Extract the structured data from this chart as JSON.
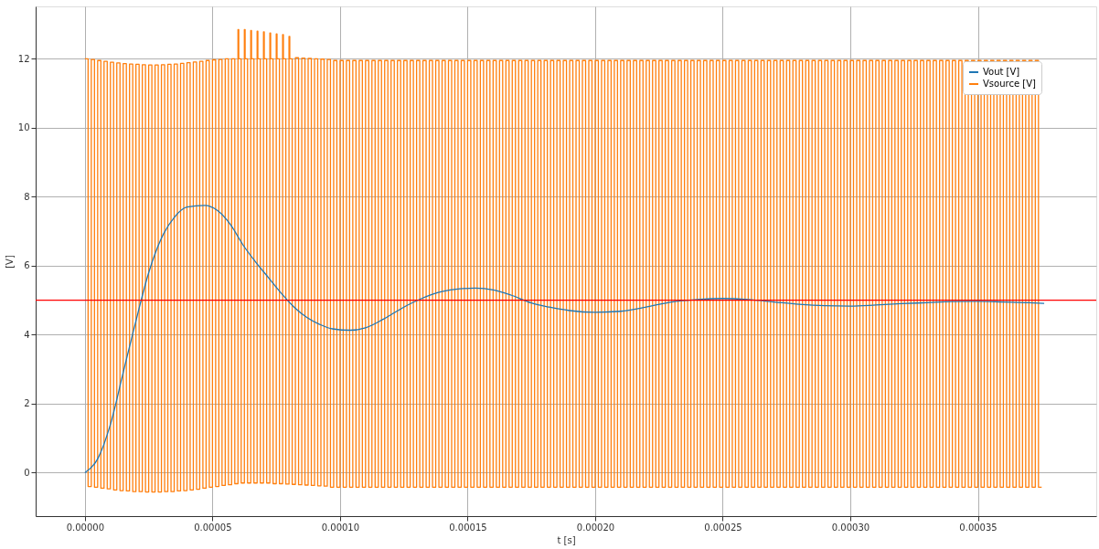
{
  "chart_data": {
    "type": "line",
    "xlabel": "t [s]",
    "ylabel": "[V]",
    "xlim": [
      -1.93e-05,
      0.0003964
    ],
    "ylim": [
      -1.26,
      13.52
    ],
    "xticks": [
      {
        "value": 0,
        "label": "0.00000"
      },
      {
        "value": 5e-05,
        "label": "0.00005"
      },
      {
        "value": 0.0001,
        "label": "0.00010"
      },
      {
        "value": 0.00015,
        "label": "0.00015"
      },
      {
        "value": 0.0002,
        "label": "0.00020"
      },
      {
        "value": 0.00025,
        "label": "0.00025"
      },
      {
        "value": 0.0003,
        "label": "0.00030"
      },
      {
        "value": 0.00035,
        "label": "0.00035"
      }
    ],
    "yticks": [
      0,
      2,
      4,
      6,
      8,
      10,
      12
    ],
    "grid": true,
    "legend": "top right",
    "line_style": "solid",
    "marker": "none",
    "ref_lines": [
      {
        "axis": "y",
        "value": 5,
        "color": "#ff0000"
      }
    ],
    "series": [
      {
        "name": "Vout [V]",
        "color": "#1f77b4",
        "x": [
          0,
          5e-06,
          1e-05,
          1.5e-05,
          2e-05,
          2.5e-05,
          3e-05,
          3.5e-05,
          4e-05,
          4.7e-05,
          5.2e-05,
          5.7e-05,
          6.2e-05,
          6.7e-05,
          7.2e-05,
          7.7e-05,
          8.2e-05,
          8.7e-05,
          9.2e-05,
          9.7e-05,
          0.000104,
          0.00011,
          0.000117,
          0.000125,
          0.000132,
          0.00014,
          0.000147,
          0.000153,
          0.00016,
          0.000167,
          0.000175,
          0.000182,
          0.00019,
          0.0002,
          0.00021,
          0.00022,
          0.00023,
          0.00024,
          0.00025,
          0.00026,
          0.00027,
          0.00028,
          0.00029,
          0.0003,
          0.00031,
          0.00032,
          0.00033,
          0.00034,
          0.00035,
          0.00036,
          0.00037,
          0.000376
        ],
        "values": [
          0,
          0.4,
          1.4,
          2.9,
          4.4,
          5.8,
          6.8,
          7.4,
          7.7,
          7.75,
          7.6,
          7.2,
          6.6,
          6.1,
          5.65,
          5.2,
          4.8,
          4.5,
          4.3,
          4.17,
          4.13,
          4.2,
          4.45,
          4.8,
          5.05,
          5.25,
          5.33,
          5.35,
          5.3,
          5.15,
          4.92,
          4.8,
          4.7,
          4.65,
          4.68,
          4.8,
          4.95,
          5.02,
          5.05,
          5.02,
          4.95,
          4.88,
          4.84,
          4.83,
          4.86,
          4.9,
          4.93,
          4.96,
          4.97,
          4.95,
          4.93,
          4.91
        ]
      },
      {
        "name": "Vsource [V]",
        "color": "#ff7f0e",
        "type": "step",
        "x": [
          0,
          1.25e-06,
          2.5e-06,
          3.75e-06,
          5e-06,
          6.25e-06,
          7.5e-06,
          8.75e-06,
          1e-05,
          1.125e-05,
          1.25e-05,
          1.375e-05,
          1.5e-05,
          1.625e-05,
          1.75e-05,
          1.875e-05,
          2e-05,
          2.125e-05,
          2.25e-05,
          2.375e-05,
          2.5e-05,
          2.625e-05,
          2.75e-05,
          2.875e-05,
          3e-05,
          3.125e-05,
          3.25e-05,
          3.375e-05,
          3.5e-05,
          3.625e-05,
          3.75e-05,
          3.875e-05,
          4e-05,
          4.125e-05,
          4.25e-05,
          4.375e-05,
          4.5e-05,
          4.625e-05,
          4.75e-05,
          4.875e-05,
          5e-05,
          5.125e-05,
          5.25e-05,
          5.375e-05,
          5.5e-05,
          5.625e-05,
          5.75e-05,
          5.875e-05,
          6e-05,
          6.03e-05,
          6.125e-05,
          6.25e-05,
          6.28e-05,
          6.375e-05,
          6.5e-05,
          6.53e-05,
          6.625e-05,
          6.75e-05,
          6.78e-05,
          6.875e-05,
          7e-05,
          7.03e-05,
          7.125e-05,
          7.25e-05,
          7.28e-05,
          7.375e-05,
          7.5e-05,
          7.53e-05,
          7.625e-05,
          7.75e-05,
          7.78e-05,
          7.875e-05,
          8e-05,
          8.03e-05,
          8.125e-05,
          8.25e-05,
          8.375e-05,
          8.5e-05,
          8.625e-05,
          8.75e-05,
          8.875e-05,
          9e-05,
          9.125e-05,
          9.25e-05,
          9.375e-05,
          9.5e-05,
          9.625e-05,
          9.75e-05,
          9.875e-05,
          0.0001,
          0.00010125,
          0.0001025,
          0.00010375,
          0.000105,
          0.00010625,
          0.0001075,
          0.00010875,
          0.00011,
          0.00011125,
          0.0001125,
          0.00011375,
          0.000115,
          0.00011625,
          0.0001175,
          0.00011875,
          0.00012,
          0.00012125,
          0.0001225,
          0.00012375,
          0.000125,
          0.00012625,
          0.0001275,
          0.00012875,
          0.00013,
          0.00013125,
          0.0001325,
          0.00013375,
          0.000135,
          0.00013625,
          0.0001375,
          0.00013875,
          0.00014,
          0.00014125,
          0.0001425,
          0.00014375,
          0.000145,
          0.00014625,
          0.0001475,
          0.00014875,
          0.00015,
          0.00015125,
          0.0001525,
          0.00015375,
          0.000155,
          0.00015625,
          0.0001575,
          0.00015875,
          0.00016,
          0.00016125,
          0.0001625,
          0.00016375,
          0.000165,
          0.00016625,
          0.0001675,
          0.00016875,
          0.00017,
          0.00017125,
          0.0001725,
          0.00017375,
          0.000175,
          0.00017625,
          0.0001775,
          0.00017875,
          0.00018,
          0.00018125,
          0.0001825,
          0.00018375,
          0.000185,
          0.00018625,
          0.0001875,
          0.00018875,
          0.00019,
          0.00019125,
          0.0001925,
          0.00019375,
          0.000195,
          0.00019625,
          0.0001975,
          0.00019875,
          0.0002,
          0.00020125,
          0.0002025,
          0.00020375,
          0.000205,
          0.00020625,
          0.0002075,
          0.00020875,
          0.00021,
          0.00021125,
          0.0002125,
          0.00021375,
          0.000215,
          0.00021625,
          0.0002175,
          0.00021875,
          0.00022,
          0.00022125,
          0.0002225,
          0.00022375,
          0.000225,
          0.00022625,
          0.0002275,
          0.00022875,
          0.00023,
          0.00023125,
          0.0002325,
          0.00023375,
          0.000235,
          0.00023625,
          0.0002375,
          0.00023875,
          0.00024,
          0.00024125,
          0.0002425,
          0.00024375,
          0.000245,
          0.00024625,
          0.0002475,
          0.00024875,
          0.00025,
          0.00025125,
          0.0002525,
          0.00025375,
          0.000255,
          0.00025625,
          0.0002575,
          0.00025875,
          0.00026,
          0.00026125,
          0.0002625,
          0.00026375,
          0.000265,
          0.00026625,
          0.0002675,
          0.00026875,
          0.00027,
          0.00027125,
          0.0002725,
          0.00027375,
          0.000275,
          0.00027625,
          0.0002775,
          0.00027875,
          0.00028,
          0.00028125,
          0.0002825,
          0.00028375,
          0.000285,
          0.00028625,
          0.0002875,
          0.00028875,
          0.00029,
          0.00029125,
          0.0002925,
          0.00029375,
          0.000295,
          0.00029625,
          0.0002975,
          0.00029875,
          0.0003,
          0.00030125,
          0.0003025,
          0.00030375,
          0.000305,
          0.00030625,
          0.0003075,
          0.00030875,
          0.00031,
          0.00031125,
          0.0003125,
          0.00031375,
          0.000315,
          0.00031625,
          0.0003175,
          0.00031875,
          0.00032,
          0.00032125,
          0.0003225,
          0.00032375,
          0.000325,
          0.00032625,
          0.0003275,
          0.00032875,
          0.00033,
          0.00033125,
          0.0003325,
          0.00033375,
          0.000335,
          0.00033625,
          0.0003375,
          0.00033875,
          0.00034,
          0.00034125,
          0.0003425,
          0.00034375,
          0.000345,
          0.00034625,
          0.0003475,
          0.00034875,
          0.00035,
          0.00035125,
          0.0003525,
          0.00035375,
          0.000355,
          0.00035625,
          0.0003575,
          0.00035875,
          0.00036,
          0.00036125,
          0.0003625,
          0.00036375,
          0.000365,
          0.00036625,
          0.0003675,
          0.00036875,
          0.00037,
          0.00037125,
          0.0003725,
          0.00037375,
          0.000375
        ],
        "values": [
          12.0,
          -0.4,
          11.98,
          -0.42,
          11.95,
          -0.45,
          11.93,
          -0.47,
          11.9,
          -0.5,
          11.88,
          -0.52,
          11.86,
          -0.53,
          11.85,
          -0.55,
          11.84,
          -0.55,
          11.83,
          -0.56,
          11.82,
          -0.56,
          11.82,
          -0.56,
          11.83,
          -0.55,
          11.84,
          -0.55,
          11.85,
          -0.53,
          11.87,
          -0.52,
          11.89,
          -0.5,
          11.91,
          -0.48,
          11.93,
          -0.45,
          11.95,
          -0.42,
          11.97,
          -0.4,
          11.98,
          -0.37,
          12.0,
          -0.35,
          12.0,
          -0.32,
          12.85,
          12.0,
          -0.3,
          12.85,
          12.0,
          -0.3,
          12.82,
          12.0,
          -0.3,
          12.8,
          12.0,
          -0.3,
          12.78,
          12.0,
          -0.3,
          12.75,
          12.0,
          -0.32,
          12.72,
          12.0,
          -0.32,
          12.7,
          12.0,
          -0.33,
          12.65,
          12.0,
          -0.34,
          12.03,
          -0.35,
          12.02,
          -0.36,
          12.01,
          -0.37,
          12.0,
          -0.38,
          11.99,
          -0.39,
          11.98,
          -0.42,
          11.95,
          -0.42,
          11.95,
          -0.42,
          11.95,
          -0.42,
          11.95,
          -0.42,
          11.95,
          -0.42,
          11.95,
          -0.42,
          11.95,
          -0.42,
          11.95,
          -0.42,
          11.95,
          -0.42,
          11.95,
          -0.42,
          11.95,
          -0.42,
          11.95,
          -0.42,
          11.95,
          -0.42,
          11.95,
          -0.42,
          11.95,
          -0.42,
          11.95,
          -0.42,
          11.95,
          -0.42,
          11.95,
          -0.42,
          11.95,
          -0.42,
          11.95,
          -0.42,
          11.95,
          -0.42,
          11.95,
          -0.42,
          11.95,
          -0.42,
          11.95,
          -0.42,
          11.95,
          -0.42,
          11.95,
          -0.42,
          11.95,
          -0.42,
          11.95,
          -0.42,
          11.95,
          -0.42,
          11.95,
          -0.42,
          11.95,
          -0.42,
          11.95,
          -0.42,
          11.95,
          -0.42,
          11.95,
          -0.42,
          11.95,
          -0.42,
          11.95,
          -0.42,
          11.95,
          -0.42,
          11.95,
          -0.42,
          11.95,
          -0.42,
          11.95,
          -0.42,
          11.95,
          -0.42,
          11.95,
          -0.42,
          11.95,
          -0.42,
          11.95,
          -0.42,
          11.95,
          -0.42,
          11.95,
          -0.42,
          11.95,
          -0.42,
          11.95,
          -0.42,
          11.95,
          -0.42,
          11.95,
          -0.42,
          11.95,
          -0.42,
          11.95,
          -0.42,
          11.95,
          -0.42,
          11.95,
          -0.42,
          11.95,
          -0.42,
          11.95,
          -0.42,
          11.95,
          -0.42,
          11.95,
          -0.42,
          11.95,
          -0.42,
          11.95,
          -0.42,
          11.95,
          -0.42,
          11.95,
          -0.42,
          11.95,
          -0.42,
          11.95,
          -0.42,
          11.95,
          -0.42,
          11.95,
          -0.42,
          11.95,
          -0.42,
          11.95,
          -0.42,
          11.95,
          -0.42,
          11.95,
          -0.42,
          11.95,
          -0.42,
          11.95,
          -0.42,
          11.95,
          -0.42,
          11.95,
          -0.42,
          11.95,
          -0.42,
          11.95,
          -0.42,
          11.95,
          -0.42,
          11.95,
          -0.42,
          11.95,
          -0.42,
          11.95,
          -0.42,
          11.95,
          -0.42,
          11.95,
          -0.42,
          11.95,
          -0.42,
          11.95,
          -0.42,
          11.95,
          -0.42,
          11.95,
          -0.42,
          11.95,
          -0.42,
          11.95,
          -0.42,
          11.95,
          -0.42,
          11.95,
          -0.42,
          11.95,
          -0.42,
          11.95,
          -0.42,
          11.95,
          -0.42,
          11.95,
          -0.42,
          11.95,
          -0.42,
          11.95,
          -0.42,
          11.95,
          -0.42,
          11.95,
          -0.42,
          11.95,
          -0.42,
          11.95,
          -0.42,
          11.95,
          -0.42,
          11.95,
          -0.42,
          11.95,
          -0.42,
          11.95,
          -0.42,
          11.95,
          -0.42,
          11.95,
          -0.42,
          11.95,
          -0.42,
          11.95,
          -0.42,
          11.95,
          -0.42,
          11.95,
          -0.42,
          11.95,
          -0.42,
          -0.42
        ]
      }
    ]
  }
}
